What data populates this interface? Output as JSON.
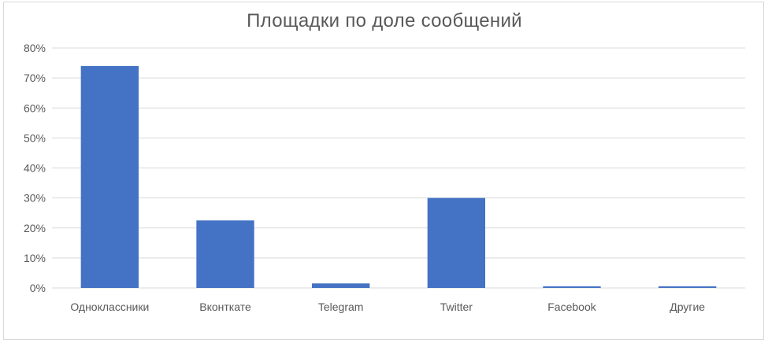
{
  "chart_data": {
    "type": "bar",
    "title": "Площадки по доле сообщений",
    "xlabel": "",
    "ylabel": "",
    "categories": [
      "Одноклассники",
      "Вконткате",
      "Telegram",
      "Twitter",
      "Facebook",
      "Другие"
    ],
    "values": [
      74,
      22.5,
      1.5,
      30,
      0.3,
      0.3
    ],
    "ylim": [
      0,
      80
    ],
    "yticks": [
      "0%",
      "10%",
      "20%",
      "30%",
      "40%",
      "50%",
      "60%",
      "70%",
      "80%"
    ],
    "grid": true,
    "legend": "none",
    "colors": {
      "bar": "#4472c4",
      "grid": "#d9d9d9",
      "text": "#595959"
    }
  }
}
